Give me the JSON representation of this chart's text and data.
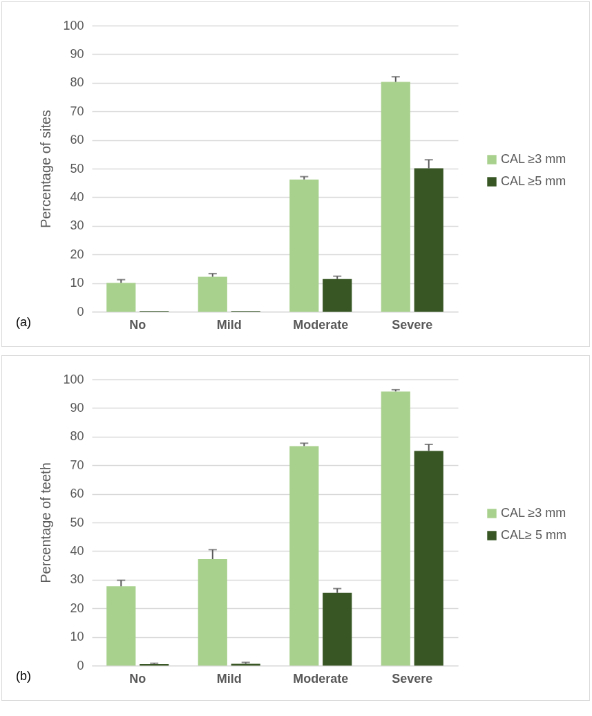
{
  "chart_data": [
    {
      "type": "bar",
      "ylabel": "Percentage of sites",
      "categories": [
        "No",
        "Mild",
        "Moderate",
        "Severe"
      ],
      "series": [
        {
          "name": "CAL ≥3 mm",
          "color": "#a9d18e",
          "values": [
            10.1,
            12.2,
            46.2,
            80.3
          ],
          "errors": [
            [
              10.1,
              11.2
            ],
            [
              12.2,
              13.3
            ],
            [
              46.2,
              47.2
            ],
            [
              80.3,
              82.1
            ]
          ]
        },
        {
          "name": "CAL ≥5 mm",
          "color": "#375623",
          "values": [
            0.2,
            0.2,
            11.4,
            50.1
          ],
          "errors": [
            null,
            null,
            [
              11.4,
              12.4
            ],
            [
              50.1,
              53.1
            ]
          ]
        }
      ],
      "ylim": [
        0,
        100
      ],
      "yticks": [
        0,
        10,
        20,
        30,
        40,
        50,
        60,
        70,
        80,
        90,
        100
      ],
      "grid": "y",
      "legend": "right",
      "annotations": [
        "(a)"
      ]
    },
    {
      "type": "bar",
      "ylabel": "Percentage of teeth",
      "categories": [
        "No",
        "Mild",
        "Moderate",
        "Severe"
      ],
      "series": [
        {
          "name": "CAL ≥3 mm",
          "color": "#a9d18e",
          "values": [
            27.7,
            37.2,
            76.7,
            95.8
          ],
          "errors": [
            [
              27.7,
              29.8
            ],
            [
              37.2,
              40.5
            ],
            [
              76.7,
              77.7
            ],
            [
              95.8,
              96.4
            ]
          ]
        },
        {
          "name": "CAL≥ 5 mm",
          "color": "#375623",
          "values": [
            0.5,
            0.6,
            25.4,
            75.0
          ],
          "errors": [
            [
              0.5,
              0.8
            ],
            [
              0.6,
              1.1
            ],
            [
              25.4,
              26.9
            ],
            [
              75.0,
              77.3
            ]
          ]
        }
      ],
      "ylim": [
        0,
        100
      ],
      "yticks": [
        0,
        10,
        20,
        30,
        40,
        50,
        60,
        70,
        80,
        90,
        100
      ],
      "grid": "y",
      "legend": "right",
      "annotations": [
        "(b)"
      ]
    }
  ]
}
